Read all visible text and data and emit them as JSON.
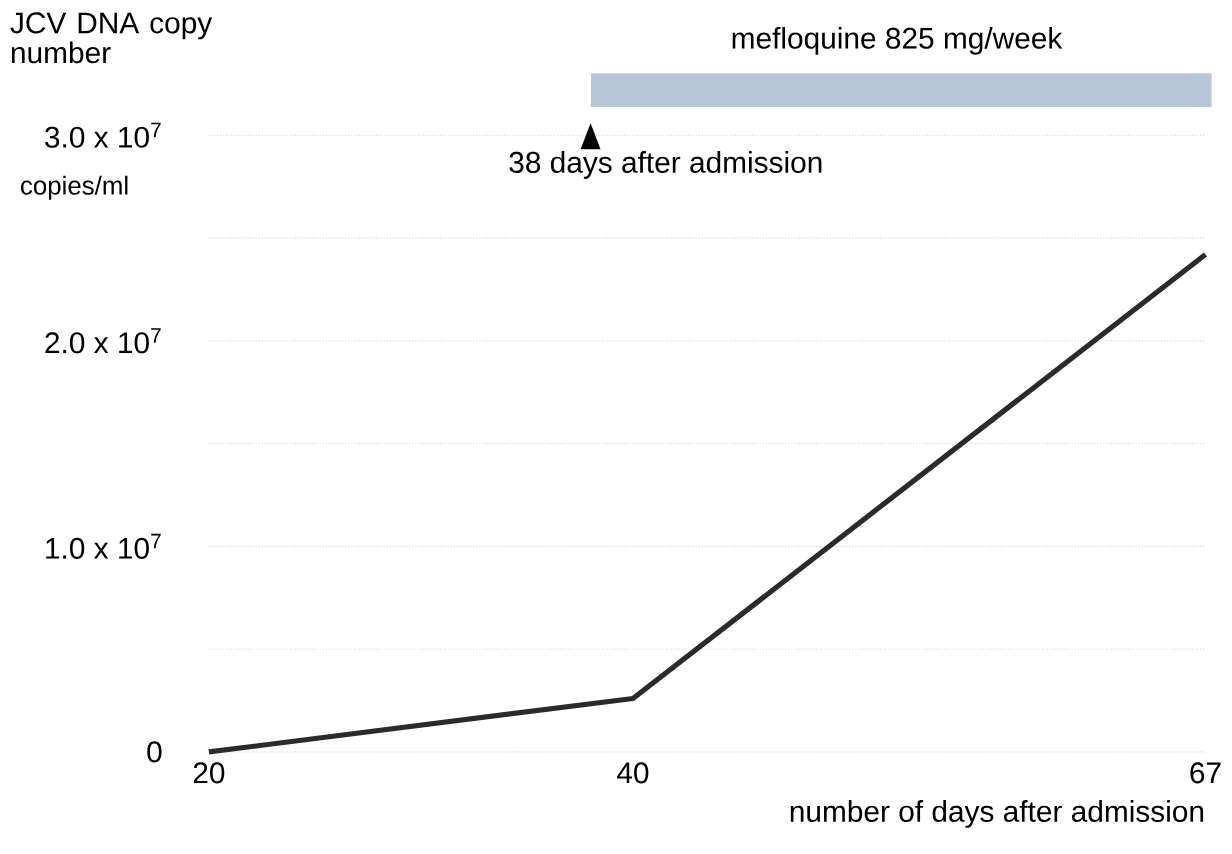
{
  "chart_data": {
    "type": "line",
    "xlabel": "number of days after admission",
    "ylabel": "JCV DNA copy number",
    "x": [
      20,
      40,
      67
    ],
    "series": [
      {
        "color": "#2b2b2b",
        "values": [
          0,
          2600000,
          24200000
        ]
      }
    ],
    "xlim": [
      20,
      67
    ],
    "xticks": [
      20,
      40,
      67
    ],
    "ylim": [
      0,
      30000000
    ],
    "yticks": [
      {
        "value": 0,
        "label": "0"
      },
      {
        "value": 5000000,
        "label": null
      },
      {
        "value": 10000000,
        "label": "1.0 x 10$^{7}$"
      },
      {
        "value": 15000000,
        "label": null
      },
      {
        "value": 20000000,
        "label": "2.0 x 10$^{7}$"
      },
      {
        "value": 25000000,
        "label": null
      },
      {
        "value": 30000000,
        "label": "3.0 x 10$^{7}$"
      }
    ],
    "grid": "y",
    "marker": "none",
    "line_style": "solid",
    "annotations": [
      "mefloquine 825 mg/week",
      "38 days after admission",
      "copies/ml"
    ]
  }
}
